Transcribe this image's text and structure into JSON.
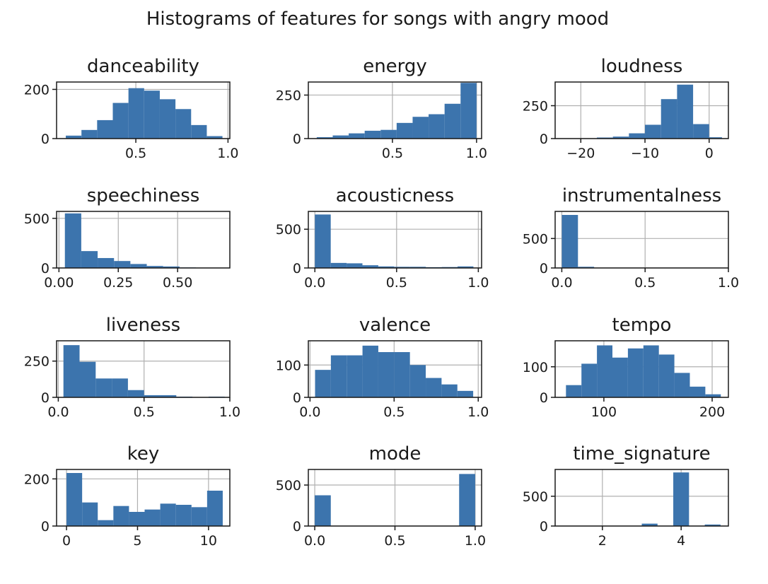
{
  "figure": {
    "title": "Histograms of features for songs with angry mood"
  },
  "colors": {
    "bar": "#3c74ad"
  },
  "chart_data": [
    {
      "type": "bar",
      "title": "danceability",
      "xlim": [
        0.07,
        1.01
      ],
      "ylim": [
        0,
        230
      ],
      "xticks": [
        0.5,
        1.0
      ],
      "xtick_labels": [
        "0.5",
        "1.0"
      ],
      "yticks": [
        0,
        200
      ],
      "ytick_labels": [
        "0",
        "200"
      ],
      "bin_edges": [
        0.12,
        0.205,
        0.29,
        0.375,
        0.46,
        0.545,
        0.63,
        0.715,
        0.8,
        0.885,
        0.97
      ],
      "values": [
        12,
        35,
        75,
        145,
        205,
        195,
        160,
        120,
        55,
        10
      ]
    },
    {
      "type": "bar",
      "title": "energy",
      "xlim": [
        0.0,
        1.03
      ],
      "ylim": [
        0,
        325
      ],
      "xticks": [
        0.5,
        1.0
      ],
      "xtick_labels": [
        "0.5",
        "1.0"
      ],
      "yticks": [
        0,
        250
      ],
      "ytick_labels": [
        "0",
        "250"
      ],
      "bin_edges": [
        0.05,
        0.145,
        0.24,
        0.335,
        0.43,
        0.525,
        0.62,
        0.715,
        0.81,
        0.905,
        1.0
      ],
      "values": [
        8,
        18,
        30,
        45,
        50,
        90,
        125,
        140,
        200,
        320
      ]
    },
    {
      "type": "bar",
      "title": "loudness",
      "xlim": [
        -24,
        3
      ],
      "ylim": [
        0,
        430
      ],
      "xticks": [
        -20,
        -10,
        0
      ],
      "xtick_labels": [
        "−20",
        "−10",
        "0"
      ],
      "yticks": [
        0,
        250
      ],
      "ytick_labels": [
        "0",
        "250"
      ],
      "bin_edges": [
        -22.5,
        -20.0,
        -17.5,
        -15.0,
        -12.5,
        -10.0,
        -7.5,
        -5.0,
        -2.5,
        0.0,
        2.0
      ],
      "values": [
        1,
        2,
        8,
        15,
        40,
        105,
        300,
        410,
        110,
        10
      ]
    },
    {
      "type": "bar",
      "title": "speechiness",
      "xlim": [
        -0.01,
        0.72
      ],
      "ylim": [
        0,
        570
      ],
      "xticks": [
        0.0,
        0.25,
        0.5
      ],
      "xtick_labels": [
        "0.00",
        "0.25",
        "0.50"
      ],
      "yticks": [
        0,
        500
      ],
      "ytick_labels": [
        "0",
        "500"
      ],
      "bin_edges": [
        0.025,
        0.094,
        0.163,
        0.232,
        0.301,
        0.37,
        0.439,
        0.508,
        0.577,
        0.646,
        0.715
      ],
      "values": [
        550,
        170,
        100,
        70,
        40,
        20,
        15,
        5,
        2,
        1
      ]
    },
    {
      "type": "bar",
      "title": "acousticness",
      "xlim": [
        -0.04,
        1.02
      ],
      "ylim": [
        0,
        730
      ],
      "xticks": [
        0.0,
        0.5,
        1.0
      ],
      "xtick_labels": [
        "0.0",
        "0.5",
        "1.0"
      ],
      "yticks": [
        0,
        500
      ],
      "ytick_labels": [
        "0",
        "500"
      ],
      "bin_edges": [
        0.0,
        0.097,
        0.194,
        0.291,
        0.388,
        0.485,
        0.582,
        0.679,
        0.776,
        0.873,
        0.97
      ],
      "values": [
        690,
        65,
        60,
        35,
        20,
        15,
        15,
        10,
        12,
        20
      ]
    },
    {
      "type": "bar",
      "title": "instrumentalness",
      "xlim": [
        -0.04,
        1.0
      ],
      "ylim": [
        0,
        960
      ],
      "xticks": [
        0.0,
        0.5,
        1.0
      ],
      "xtick_labels": [
        "0.0",
        "0.5",
        "1.0"
      ],
      "yticks": [
        0,
        500
      ],
      "ytick_labels": [
        "0",
        "500"
      ],
      "bin_edges": [
        0.0,
        0.097,
        0.194,
        0.291,
        0.388,
        0.485,
        0.582,
        0.679,
        0.776,
        0.873,
        0.97
      ],
      "values": [
        900,
        20,
        5,
        3,
        2,
        1,
        1,
        1,
        1,
        1
      ]
    },
    {
      "type": "bar",
      "title": "liveness",
      "xlim": [
        -0.01,
        1.0
      ],
      "ylim": [
        0,
        390
      ],
      "xticks": [
        0.0,
        0.5,
        1.0
      ],
      "xtick_labels": [
        "0.0",
        "0.5",
        "1.0"
      ],
      "yticks": [
        0,
        250
      ],
      "ytick_labels": [
        "0",
        "250"
      ],
      "bin_edges": [
        0.03,
        0.124,
        0.218,
        0.312,
        0.406,
        0.5,
        0.594,
        0.688,
        0.782,
        0.876,
        0.97
      ],
      "values": [
        360,
        245,
        130,
        130,
        50,
        15,
        15,
        5,
        1,
        5
      ]
    },
    {
      "type": "bar",
      "title": "valence",
      "xlim": [
        -0.01,
        1.02
      ],
      "ylim": [
        0,
        175
      ],
      "xticks": [
        0.0,
        0.5,
        1.0
      ],
      "xtick_labels": [
        "0.0",
        "0.5",
        "1.0"
      ],
      "yticks": [
        0,
        100
      ],
      "ytick_labels": [
        "0",
        "100"
      ],
      "bin_edges": [
        0.03,
        0.124,
        0.218,
        0.312,
        0.406,
        0.5,
        0.594,
        0.688,
        0.782,
        0.876,
        0.97
      ],
      "values": [
        85,
        130,
        130,
        160,
        140,
        140,
        100,
        60,
        40,
        20
      ]
    },
    {
      "type": "bar",
      "title": "tempo",
      "xlim": [
        55,
        215
      ],
      "ylim": [
        0,
        185
      ],
      "xticks": [
        100,
        200
      ],
      "xtick_labels": [
        "100",
        "200"
      ],
      "yticks": [
        0,
        100
      ],
      "ytick_labels": [
        "0",
        "100"
      ],
      "bin_edges": [
        65,
        79.3,
        93.6,
        107.9,
        122.2,
        136.5,
        150.8,
        165.1,
        179.4,
        193.7,
        208
      ],
      "values": [
        40,
        110,
        170,
        130,
        160,
        170,
        140,
        80,
        35,
        10
      ]
    },
    {
      "type": "bar",
      "title": "key",
      "xlim": [
        -0.7,
        11.5
      ],
      "ylim": [
        0,
        240
      ],
      "xticks": [
        0,
        5,
        10
      ],
      "xtick_labels": [
        "0",
        "5",
        "10"
      ],
      "yticks": [
        0,
        200
      ],
      "ytick_labels": [
        "0",
        "200"
      ],
      "bin_edges": [
        0,
        1.1,
        2.2,
        3.3,
        4.4,
        5.5,
        6.6,
        7.7,
        8.8,
        9.9,
        11
      ],
      "values": [
        225,
        100,
        25,
        85,
        60,
        70,
        95,
        90,
        80,
        150
      ]
    },
    {
      "type": "bar",
      "title": "mode",
      "xlim": [
        -0.04,
        1.04
      ],
      "ylim": [
        0,
        690
      ],
      "xticks": [
        0.0,
        0.5,
        1.0
      ],
      "xtick_labels": [
        "0.0",
        "0.5",
        "1.0"
      ],
      "yticks": [
        0,
        500
      ],
      "ytick_labels": [
        "0",
        "500"
      ],
      "bin_edges": [
        0.0,
        0.1,
        0.2,
        0.3,
        0.4,
        0.5,
        0.6,
        0.7,
        0.8,
        0.9,
        1.0
      ],
      "values": [
        375,
        0,
        0,
        0,
        0,
        0,
        0,
        0,
        0,
        635
      ]
    },
    {
      "type": "bar",
      "title": "time_signature",
      "xlim": [
        0.8,
        5.2
      ],
      "ylim": [
        0,
        950
      ],
      "xticks": [
        2,
        4
      ],
      "xtick_labels": [
        "2",
        "4"
      ],
      "yticks": [
        0,
        500
      ],
      "ytick_labels": [
        "0",
        "500"
      ],
      "bin_edges": [
        1.0,
        1.4,
        1.8,
        2.2,
        2.6,
        3.0,
        3.4,
        3.8,
        4.2,
        4.6,
        5.0
      ],
      "values": [
        1,
        0,
        0,
        0,
        0,
        40,
        0,
        900,
        0,
        25
      ]
    }
  ]
}
